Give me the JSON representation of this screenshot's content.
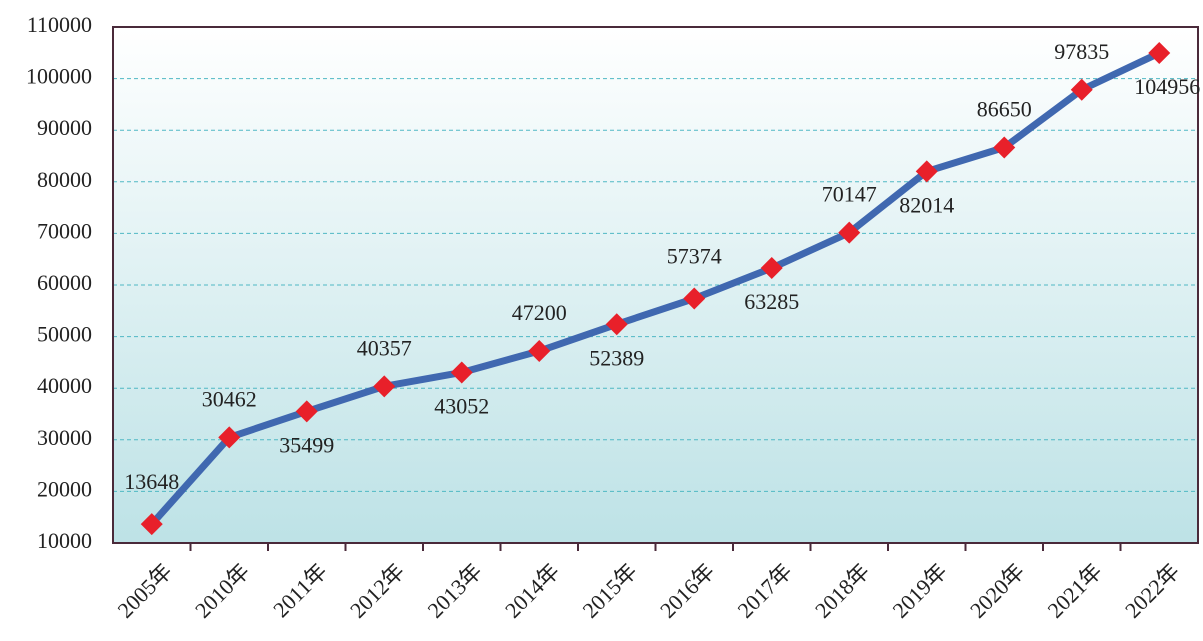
{
  "chart_data": {
    "type": "line",
    "categories": [
      "2005年",
      "2010年",
      "2011年",
      "2012年",
      "2013年",
      "2014年",
      "2015年",
      "2016年",
      "2017年",
      "2018年",
      "2019年",
      "2020年",
      "2021年",
      "2022年"
    ],
    "series": [
      {
        "color": "#4068b0",
        "marker_color": "#e8202a",
        "values": [
          13648,
          30462,
          35499,
          40357,
          43052,
          47200,
          52389,
          57374,
          63285,
          70147,
          82014,
          86650,
          97835,
          104956
        ]
      }
    ],
    "ylim": [
      10000,
      110000
    ],
    "yticks": [
      10000,
      20000,
      30000,
      40000,
      50000,
      60000,
      70000,
      80000,
      90000,
      100000,
      110000
    ],
    "grid": true
  }
}
